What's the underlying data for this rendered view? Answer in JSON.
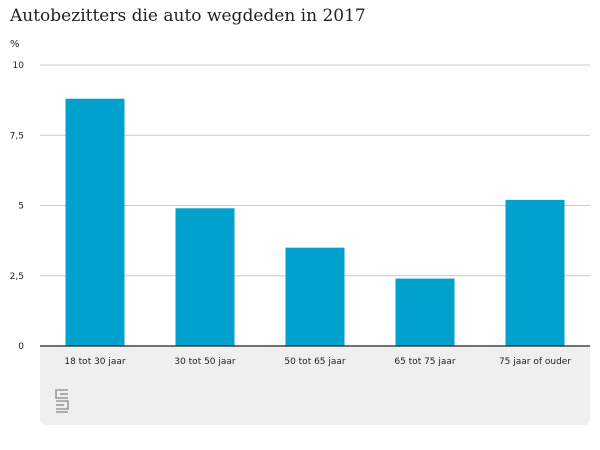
{
  "title": "Autobezitters die auto wegdeden in 2017",
  "colors": {
    "bar": "#00a1cd",
    "grid": "#cccccc",
    "axis": "#222222",
    "footer": "#efefef"
  },
  "logo_icon": "cbs-logo-icon",
  "chart_data": {
    "type": "bar",
    "title": "Autobezitters die auto wegdeden in 2017",
    "unit_label": "%",
    "xlabel": "",
    "ylabel": "%",
    "categories": [
      "18 tot 30 jaar",
      "30 tot 50 jaar",
      "50 tot 65 jaar",
      "65 tot 75 jaar",
      "75 jaar of ouder"
    ],
    "values": [
      8.8,
      4.9,
      3.5,
      2.4,
      5.2
    ],
    "ylim": [
      0,
      10
    ],
    "yticks": [
      0,
      2.5,
      5,
      7.5,
      10
    ],
    "ytick_labels": [
      "0",
      "2,5",
      "5",
      "7,5",
      "10"
    ],
    "grid": true,
    "legend": "none"
  }
}
